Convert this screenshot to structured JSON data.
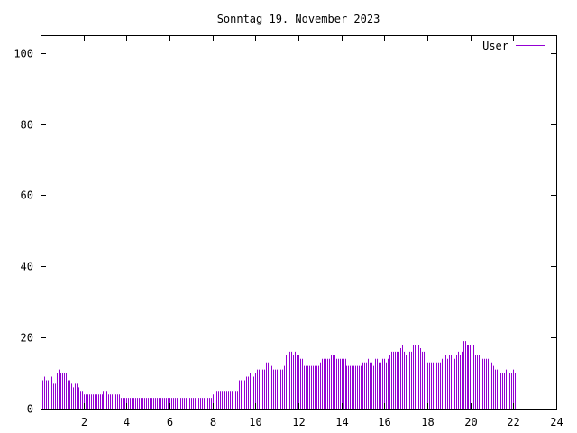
{
  "chart_data": {
    "type": "bar",
    "title": "Sonntag 19. November 2023",
    "xlim": [
      0,
      24
    ],
    "ylim": [
      0,
      105
    ],
    "x_ticks": [
      {
        "value": 2,
        "label": "2"
      },
      {
        "value": 4,
        "label": "4"
      },
      {
        "value": 6,
        "label": "6"
      },
      {
        "value": 8,
        "label": "8"
      },
      {
        "value": 10,
        "label": "10"
      },
      {
        "value": 12,
        "label": "12"
      },
      {
        "value": 14,
        "label": "14"
      },
      {
        "value": 16,
        "label": "16"
      },
      {
        "value": 18,
        "label": "18"
      },
      {
        "value": 20,
        "label": "20"
      },
      {
        "value": 22,
        "label": "22"
      },
      {
        "value": 24,
        "label": "24"
      }
    ],
    "y_ticks": [
      {
        "value": 0,
        "label": "0"
      },
      {
        "value": 20,
        "label": "20"
      },
      {
        "value": 40,
        "label": "40"
      },
      {
        "value": 60,
        "label": "60"
      },
      {
        "value": 80,
        "label": "80"
      },
      {
        "value": 100,
        "label": "100"
      }
    ],
    "grid": false,
    "legend_position": "top-right",
    "series": [
      {
        "name": "User",
        "color": "#9400d3",
        "x_start": 0,
        "x_step": 0.0833,
        "values": [
          8,
          8,
          9,
          8,
          8,
          9,
          9,
          7,
          7,
          10,
          11,
          10,
          10,
          10,
          10,
          8,
          8,
          7,
          6,
          7,
          7,
          6,
          5,
          5,
          4,
          4,
          4,
          4,
          4,
          4,
          4,
          4,
          4,
          4,
          4,
          5,
          5,
          5,
          4,
          4,
          4,
          4,
          4,
          4,
          4,
          3,
          3,
          3,
          3,
          3,
          3,
          3,
          3,
          3,
          3,
          3,
          3,
          3,
          3,
          3,
          3,
          3,
          3,
          3,
          3,
          3,
          3,
          3,
          3,
          3,
          3,
          3,
          3,
          3,
          3,
          3,
          3,
          3,
          3,
          3,
          3,
          3,
          3,
          3,
          3,
          3,
          3,
          3,
          3,
          3,
          3,
          3,
          3,
          3,
          3,
          3,
          4,
          6,
          5,
          5,
          5,
          5,
          5,
          5,
          5,
          5,
          5,
          5,
          5,
          5,
          5,
          8,
          8,
          8,
          8,
          9,
          9,
          10,
          10,
          9,
          10,
          11,
          11,
          11,
          11,
          11,
          13,
          13,
          12,
          12,
          11,
          11,
          11,
          11,
          11,
          11,
          12,
          15,
          15,
          16,
          16,
          15,
          16,
          15,
          15,
          14,
          14,
          12,
          12,
          12,
          12,
          12,
          12,
          12,
          12,
          12,
          13,
          14,
          14,
          14,
          14,
          14,
          15,
          15,
          15,
          14,
          14,
          14,
          14,
          14,
          14,
          12,
          12,
          12,
          12,
          12,
          12,
          12,
          12,
          12,
          13,
          13,
          13,
          14,
          13,
          13,
          12,
          14,
          14,
          13,
          13,
          14,
          14,
          13,
          14,
          15,
          16,
          16,
          16,
          16,
          16,
          17,
          18,
          16,
          15,
          15,
          16,
          16,
          18,
          18,
          17,
          18,
          17,
          16,
          16,
          14,
          13,
          13,
          13,
          13,
          13,
          13,
          13,
          13,
          14,
          15,
          15,
          14,
          15,
          15,
          15,
          14,
          15,
          16,
          15,
          16,
          19,
          19,
          18,
          18,
          18,
          19,
          18,
          15,
          15,
          15,
          14,
          14,
          14,
          14,
          14,
          13,
          13,
          12,
          11,
          11,
          10,
          10,
          10,
          10,
          11,
          11,
          10,
          10,
          11,
          10,
          11
        ]
      }
    ]
  }
}
